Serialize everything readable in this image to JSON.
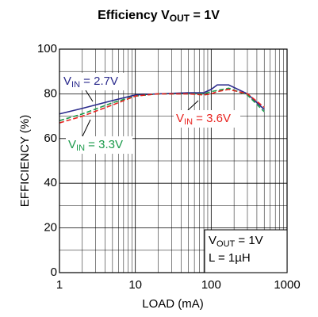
{
  "chart_data": {
    "type": "line",
    "title": [
      "Efficiency V",
      "OUT",
      " = 1V"
    ],
    "x_label": "LOAD (mA)",
    "y_label": "EFFICIENCY (%)",
    "xscale": "log",
    "xlim": [
      1,
      1000
    ],
    "xticks": [
      1,
      10,
      100,
      1000
    ],
    "xminor": [
      2,
      3,
      4,
      5,
      6,
      7,
      8,
      9,
      20,
      30,
      40,
      50,
      60,
      70,
      80,
      90,
      200,
      300,
      400,
      500,
      600,
      700,
      800,
      900
    ],
    "ylim": [
      0,
      100
    ],
    "yticks": [
      0,
      20,
      40,
      60,
      80,
      100
    ],
    "yminor": [
      10,
      30,
      50,
      70,
      90
    ],
    "grid": true,
    "x": [
      1,
      2,
      5,
      10,
      20,
      50,
      80,
      100,
      120,
      170,
      300,
      500
    ],
    "series": [
      {
        "name": [
          "V",
          "IN",
          " = 2.7V"
        ],
        "color": "#2a2a8c",
        "dash": false,
        "values": [
          71,
          73.5,
          77,
          79.5,
          80,
          80.5,
          80.5,
          82,
          84,
          84,
          80,
          73
        ]
      },
      {
        "name": [
          "V",
          "IN",
          " = 3.3V"
        ],
        "color": "#1a9a4a",
        "dash": true,
        "values": [
          68,
          71,
          76,
          79,
          80,
          80,
          80,
          81,
          81.5,
          82.5,
          79.5,
          72
        ]
      },
      {
        "name": [
          "V",
          "IN",
          " = 3.6V"
        ],
        "color": "#e8231f",
        "dash": true,
        "values": [
          67,
          70,
          75,
          79,
          80,
          80,
          79.5,
          80,
          81,
          82,
          80,
          74
        ]
      }
    ],
    "annotations": [
      [
        "V",
        "OUT",
        " = 1V"
      ],
      [
        "L = 1µH"
      ]
    ]
  }
}
